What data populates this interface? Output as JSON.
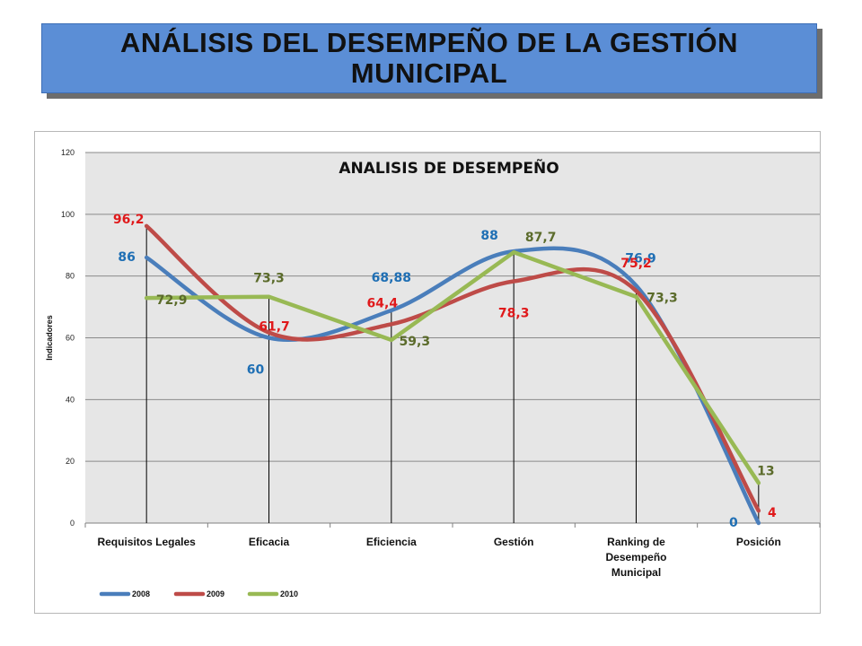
{
  "header": {
    "title": "ANÁLISIS DEL DESEMPEÑO DE LA GESTIÓN MUNICIPAL"
  },
  "chart_data": {
    "type": "line",
    "title": "ANALISIS DE DESEMPEÑO",
    "ylabel": "Indicadores",
    "xlabel": "",
    "ylim": [
      0,
      120
    ],
    "yticks": [
      0,
      20,
      40,
      60,
      80,
      100,
      120
    ],
    "grid": true,
    "legend": "bottom-left",
    "categories": [
      [
        "Requisitos Legales"
      ],
      [
        "Eficacia"
      ],
      [
        "Eficiencia"
      ],
      [
        "Gestión"
      ],
      [
        "Ranking de",
        "Desempeño",
        "Municipal"
      ],
      [
        "Posición"
      ]
    ],
    "series": [
      {
        "name": "2008",
        "color": "#4a7ebb",
        "values": [
          86,
          60,
          68.88,
          88,
          76.9,
          0
        ],
        "labels": [
          "86",
          "60",
          "68,88",
          "88",
          "76,9",
          "0"
        ]
      },
      {
        "name": "2009",
        "color": "#be4b48",
        "values": [
          96.2,
          61.7,
          64.4,
          78.3,
          75.2,
          4
        ],
        "labels": [
          "96,2",
          "61,7",
          "64,4",
          "78,3",
          "75,2",
          "4"
        ]
      },
      {
        "name": "2010",
        "color": "#98b954",
        "values": [
          72.9,
          73.3,
          59.3,
          87.7,
          73.3,
          13
        ],
        "labels": [
          "72,9",
          "73,3",
          "59,3",
          "87,7",
          "73,3",
          "13"
        ]
      }
    ],
    "label_colors": {
      "2008": "#1f6fb4",
      "2009": "#e0191b",
      "2010": "#5b6b2b"
    },
    "colors": {
      "plot_background": "#e6e6e6",
      "gridline": "#8a8a8a",
      "title_box": "#5b8ed6"
    }
  }
}
